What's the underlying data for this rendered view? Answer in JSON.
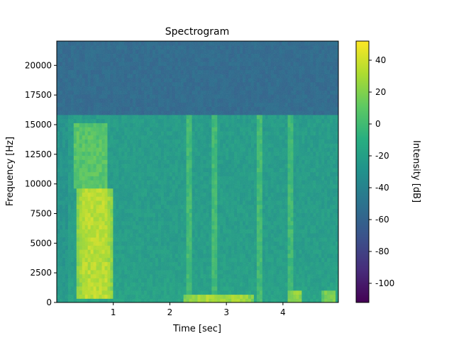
{
  "chart_data": {
    "type": "heatmap",
    "title": "Spectrogram",
    "xlabel": "Time [sec]",
    "ylabel": "Frequency [Hz]",
    "colorbar_label": "Intensity [dB]",
    "colormap": "viridis",
    "xlim": [
      0.0,
      4.98
    ],
    "ylim": [
      0,
      22050
    ],
    "clim": [
      -112,
      52
    ],
    "x_ticks": [
      1,
      2,
      3,
      4
    ],
    "y_ticks": [
      0,
      2500,
      5000,
      7500,
      10000,
      12500,
      15000,
      17500,
      20000
    ],
    "colorbar_ticks": [
      40,
      20,
      0,
      -20,
      -40,
      -60,
      -80,
      -100
    ],
    "grid": false,
    "summary": {
      "noise_floor_db_above_16000hz": -55,
      "spectral_cutoff_hz": 16000,
      "speech_band_db_range": [
        -20,
        35
      ],
      "high_energy_bursts": [
        {
          "t_start": 0.35,
          "t_end": 1.0,
          "f_low": 500,
          "f_high": 9500,
          "db": 35
        },
        {
          "t_start": 2.25,
          "t_end": 3.5,
          "f_low": 0,
          "f_high": 600,
          "db": 30
        },
        {
          "t_start": 4.1,
          "t_end": 4.35,
          "f_low": 0,
          "f_high": 1200,
          "db": 25
        },
        {
          "t_start": 4.7,
          "t_end": 4.95,
          "f_low": 0,
          "f_high": 1200,
          "db": 22
        }
      ],
      "vertical_broadband_events_sec": [
        2.35,
        2.8,
        3.6,
        4.15
      ]
    }
  }
}
